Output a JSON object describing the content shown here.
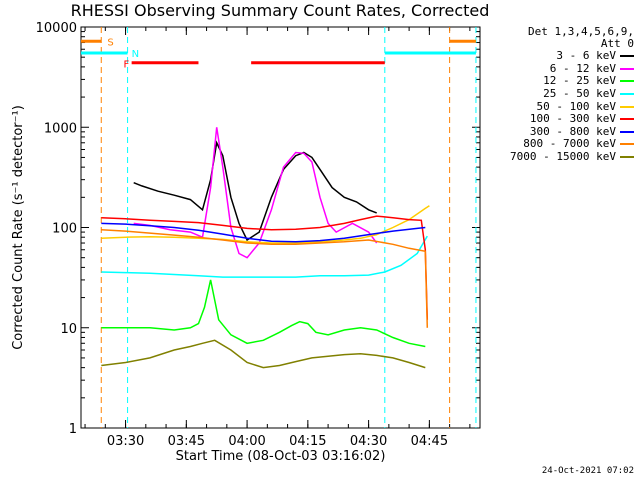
{
  "chart_data": {
    "type": "line",
    "title": "RHESSI Observing Summary Count Rates, Corrected",
    "xlabel": "Start Time (08-Oct-03 03:16:02)",
    "ylabel": "Corrected Count Rate (s⁻¹ detector⁻¹)",
    "ylog": true,
    "ylim": [
      1,
      10000
    ],
    "xlim_minutes": [
      3.0,
      101.5
    ],
    "x_ticks": [
      {
        "label": "03:30",
        "min": 14
      },
      {
        "label": "03:45",
        "min": 29
      },
      {
        "label": "04:00",
        "min": 44
      },
      {
        "label": "04:15",
        "min": 59
      },
      {
        "label": "04:30",
        "min": 74
      },
      {
        "label": "04:45",
        "min": 89
      }
    ],
    "y_ticks": [
      {
        "label": "1",
        "v": 1
      },
      {
        "label": "10",
        "v": 10
      },
      {
        "label": "100",
        "v": 100
      },
      {
        "label": "1000",
        "v": 1000
      },
      {
        "label": "10000",
        "v": 10000
      }
    ],
    "legend_header": [
      "Det 1,3,4,5,6,9,",
      "Att 0"
    ],
    "series": [
      {
        "name": "3 - 6 keV",
        "color": "#000000",
        "x": [
          16,
          18,
          22,
          26,
          30,
          33,
          35,
          36.5,
          38,
          40,
          42,
          44,
          47,
          50,
          53,
          56,
          58,
          60,
          62,
          65,
          68,
          71,
          74,
          76
        ],
        "y": [
          280,
          260,
          230,
          210,
          190,
          150,
          300,
          700,
          520,
          200,
          110,
          75,
          90,
          200,
          380,
          520,
          560,
          500,
          380,
          250,
          200,
          180,
          150,
          140
        ]
      },
      {
        "name": "6 - 12 keV",
        "color": "#ff00ff",
        "x": [
          16,
          20,
          25,
          30,
          33,
          35,
          36.5,
          38,
          40,
          42,
          44,
          47,
          50,
          53,
          56,
          58,
          60,
          62,
          64,
          66,
          70,
          74,
          76
        ],
        "y": [
          110,
          105,
          95,
          90,
          80,
          250,
          1000,
          400,
          100,
          55,
          50,
          70,
          150,
          400,
          560,
          550,
          450,
          200,
          110,
          90,
          110,
          90,
          70
        ]
      },
      {
        "name": "12 - 25 keV",
        "color": "#00ff00",
        "x": [
          8,
          14,
          20,
          26,
          30,
          32,
          33.5,
          35,
          37,
          40,
          44,
          48,
          52,
          55,
          57,
          59,
          61,
          64,
          68,
          72,
          76,
          80,
          84,
          88
        ],
        "y": [
          10,
          10,
          10,
          9.5,
          10,
          11,
          16,
          30,
          12,
          8.5,
          7,
          7.5,
          9,
          10.5,
          11.5,
          11,
          9,
          8.5,
          9.5,
          10,
          9.5,
          8,
          7,
          6.5
        ]
      },
      {
        "name": "25 - 50 keV",
        "color": "#00ffff",
        "x": [
          8,
          14,
          20,
          26,
          32,
          38,
          44,
          50,
          56,
          62,
          68,
          74,
          78,
          82,
          86,
          88.5
        ],
        "y": [
          36,
          35.5,
          35,
          34,
          33,
          32,
          32,
          32,
          32,
          33,
          33,
          33.5,
          36,
          42,
          55,
          82
        ]
      },
      {
        "name": "50 - 100 keV",
        "color": "#ffcc00",
        "x": [
          8,
          14,
          20,
          26,
          32,
          38,
          44,
          50,
          56,
          62,
          68,
          72,
          76,
          80,
          84,
          88,
          89
        ],
        "y": [
          78,
          80,
          81,
          80,
          78,
          76,
          72,
          70,
          70,
          72,
          75,
          78,
          85,
          100,
          120,
          155,
          165
        ]
      },
      {
        "name": "100 - 300 keV",
        "color": "#ff0000",
        "x": [
          8,
          14,
          20,
          26,
          32,
          38,
          44,
          50,
          56,
          62,
          68,
          72,
          76,
          80,
          84,
          87,
          88,
          88.5
        ],
        "y": [
          125,
          122,
          118,
          115,
          112,
          105,
          98,
          95,
          96,
          100,
          110,
          120,
          130,
          125,
          120,
          118,
          60,
          12
        ]
      },
      {
        "name": "300 - 800 keV",
        "color": "#0000ff",
        "x": [
          8,
          14,
          20,
          26,
          32,
          38,
          44,
          50,
          56,
          62,
          68,
          74,
          80,
          86,
          88
        ],
        "y": [
          110,
          108,
          104,
          100,
          94,
          86,
          78,
          73,
          72,
          74,
          78,
          85,
          92,
          98,
          100
        ]
      },
      {
        "name": "800 - 7000 keV",
        "color": "#ff8000",
        "x": [
          8,
          14,
          20,
          26,
          32,
          38,
          44,
          50,
          56,
          62,
          68,
          74,
          80,
          84,
          88,
          88.5
        ],
        "y": [
          95,
          92,
          88,
          84,
          80,
          75,
          70,
          68,
          68,
          70,
          72,
          75,
          68,
          62,
          58,
          10
        ]
      },
      {
        "name": "7000 - 15000 keV",
        "color": "#808000",
        "x": [
          8,
          14,
          20,
          26,
          30,
          33,
          36,
          40,
          44,
          48,
          52,
          56,
          60,
          64,
          68,
          72,
          76,
          80,
          84,
          88
        ],
        "y": [
          4.2,
          4.5,
          5,
          6,
          6.5,
          7,
          7.5,
          6,
          4.5,
          4,
          4.2,
          4.6,
          5,
          5.2,
          5.4,
          5.5,
          5.3,
          5,
          4.5,
          4
        ]
      }
    ],
    "flags": [
      {
        "label": "S",
        "color": "#ff8000"
      },
      {
        "label": "N",
        "color": "#00ffff"
      },
      {
        "label": "F",
        "color": "#ff0000"
      }
    ],
    "flag_segments": {
      "S": {
        "y": 7200,
        "ranges": [
          [
            3,
            8
          ],
          [
            94,
            100.5
          ]
        ]
      },
      "N": {
        "y": 5500,
        "ranges": [
          [
            3,
            14.5
          ],
          [
            78,
            100.5
          ]
        ]
      },
      "F": {
        "y": 4400,
        "ranges": [
          [
            15.5,
            32
          ],
          [
            45,
            78
          ]
        ]
      }
    },
    "night_boundaries_min": [
      14.5,
      78,
      100.5
    ],
    "saa_boundaries_min": [
      8,
      94
    ],
    "timestamp": "24-Oct-2021 07:02"
  }
}
